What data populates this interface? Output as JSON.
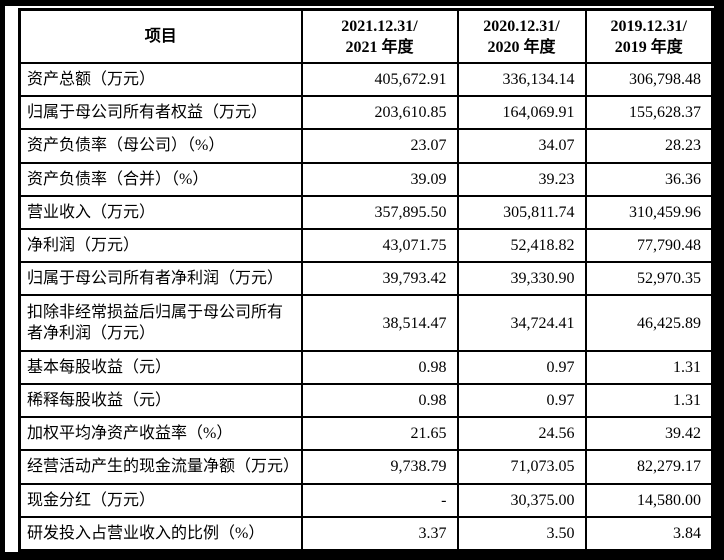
{
  "page": {
    "frame_color": "#000000",
    "paper_color": "#ffffff",
    "text_color": "#000000",
    "border_color": "#000000"
  },
  "table": {
    "header": {
      "item_label": "项目",
      "periods": [
        {
          "line1": "2021.12.31/",
          "line2": "2021 年度"
        },
        {
          "line1": "2020.12.31/",
          "line2": "2020 年度"
        },
        {
          "line1": "2019.12.31/",
          "line2": "2019 年度"
        }
      ]
    },
    "rows": [
      {
        "label": "资产总额（万元）",
        "values": [
          "405,672.91",
          "336,134.14",
          "306,798.48"
        ]
      },
      {
        "label": "归属于母公司所有者权益（万元）",
        "values": [
          "203,610.85",
          "164,069.91",
          "155,628.37"
        ]
      },
      {
        "label": "资产负债率（母公司）（%）",
        "values": [
          "23.07",
          "34.07",
          "28.23"
        ]
      },
      {
        "label": "资产负债率（合并）（%）",
        "values": [
          "39.09",
          "39.23",
          "36.36"
        ]
      },
      {
        "label": "营业收入（万元）",
        "values": [
          "357,895.50",
          "305,811.74",
          "310,459.96"
        ]
      },
      {
        "label": "净利润（万元）",
        "values": [
          "43,071.75",
          "52,418.82",
          "77,790.48"
        ]
      },
      {
        "label": "归属于母公司所有者净利润（万元）",
        "values": [
          "39,793.42",
          "39,330.90",
          "52,970.35"
        ]
      },
      {
        "label": "扣除非经常损益后归属于母公司所有者净利润（万元）",
        "values": [
          "38,514.47",
          "34,724.41",
          "46,425.89"
        ]
      },
      {
        "label": "基本每股收益（元）",
        "values": [
          "0.98",
          "0.97",
          "1.31"
        ]
      },
      {
        "label": "稀释每股收益（元）",
        "values": [
          "0.98",
          "0.97",
          "1.31"
        ]
      },
      {
        "label": "加权平均净资产收益率（%）",
        "values": [
          "21.65",
          "24.56",
          "39.42"
        ]
      },
      {
        "label": "经营活动产生的现金流量净额（万元）",
        "values": [
          "9,738.79",
          "71,073.05",
          "82,279.17"
        ]
      },
      {
        "label": "现金分红（万元）",
        "values": [
          "-",
          "30,375.00",
          "14,580.00"
        ]
      },
      {
        "label": "研发投入占营业收入的比例（%）",
        "values": [
          "3.37",
          "3.50",
          "3.84"
        ]
      }
    ]
  }
}
